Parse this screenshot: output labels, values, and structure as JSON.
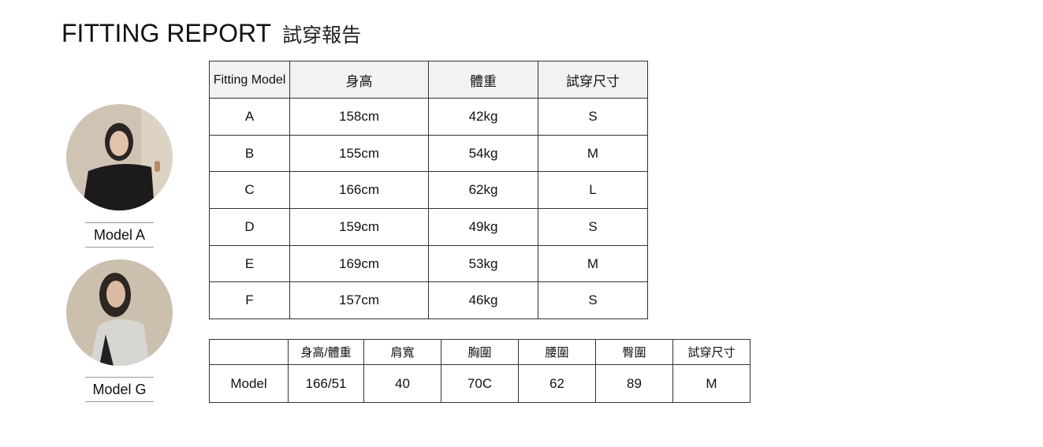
{
  "title": {
    "en": "FITTING REPORT",
    "zh": "試穿報告"
  },
  "models": [
    {
      "label": "Model A"
    },
    {
      "label": "Model G"
    }
  ],
  "fitting_table": {
    "headers": [
      "Fitting Model",
      "身高",
      "體重",
      "試穿尺寸"
    ],
    "rows": [
      [
        "A",
        "158cm",
        "42kg",
        "S"
      ],
      [
        "B",
        "155cm",
        "54kg",
        "M"
      ],
      [
        "C",
        "166cm",
        "62kg",
        "L"
      ],
      [
        "D",
        "159cm",
        "49kg",
        "S"
      ],
      [
        "E",
        "169cm",
        "53kg",
        "M"
      ],
      [
        "F",
        "157cm",
        "46kg",
        "S"
      ]
    ]
  },
  "measure_table": {
    "headers": [
      "",
      "身高/體重",
      "肩寬",
      "胸圍",
      "腰圍",
      "臀圍",
      "試穿尺寸"
    ],
    "row": [
      "Model",
      "166/51",
      "40",
      "70C",
      "62",
      "89",
      "M"
    ]
  }
}
